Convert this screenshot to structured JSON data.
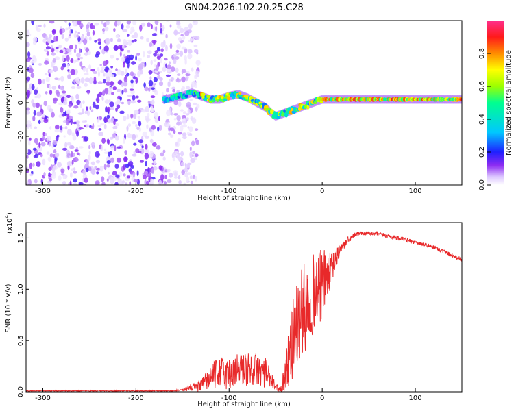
{
  "title": "GN04.2026.102.20.25.C28",
  "colors": {
    "snr_line": "#e8292a",
    "axis": "#000000",
    "background": "#ffffff"
  },
  "chart_data": [
    {
      "type": "heatmap",
      "name": "spectrogram",
      "xlabel": "Height of straight line (km)",
      "ylabel": "Frequency (Hz)",
      "xlim": [
        -318,
        150
      ],
      "ylim": [
        -49,
        49
      ],
      "x_ticks": [
        -300,
        -200,
        -100,
        0,
        100
      ],
      "y_ticks": [
        -40,
        -20,
        0,
        20,
        40
      ],
      "noise_region_x": [
        -318,
        -145
      ],
      "signal_track": {
        "x": [
          -170,
          -150,
          -140,
          -130,
          -120,
          -110,
          -100,
          -90,
          -80,
          -70,
          -60,
          -55,
          -50,
          -40,
          -30,
          -20,
          -10,
          0,
          20,
          60,
          100,
          150
        ],
        "freq": [
          2,
          4,
          6,
          4,
          2,
          2,
          4,
          5,
          3,
          0,
          -3,
          -6,
          -8,
          -6,
          -4,
          -2,
          0,
          2,
          2,
          2,
          2,
          2
        ]
      },
      "colorbar": {
        "label": "Normalized spectral amplitude",
        "range": [
          0,
          1
        ],
        "ticks": [
          0.0,
          0.2,
          0.4,
          0.6,
          0.8
        ]
      }
    },
    {
      "type": "line",
      "name": "snr",
      "xlabel": "Height of straight line (km)",
      "ylabel": "SNR (10 * v/v)",
      "multiplier_label": "(x10",
      "multiplier_exp": "4",
      "multiplier_close": ")",
      "xlim": [
        -318,
        150
      ],
      "ylim": [
        0,
        1.65
      ],
      "x_ticks": [
        -300,
        -200,
        -100,
        0,
        100
      ],
      "y_ticks": [
        0.0,
        0.5,
        1.0,
        1.5
      ],
      "envelope": {
        "x": [
          -318,
          -160,
          -150,
          -130,
          -120,
          -110,
          -100,
          -90,
          -80,
          -70,
          -60,
          -50,
          -45,
          -40,
          -30,
          -20,
          -10,
          0,
          10,
          20,
          30,
          40,
          60,
          80,
          100,
          120,
          150
        ],
        "y": [
          0.01,
          0.01,
          0.02,
          0.06,
          0.14,
          0.2,
          0.17,
          0.22,
          0.22,
          0.22,
          0.18,
          0.05,
          0.02,
          0.15,
          0.6,
          0.8,
          0.95,
          1.05,
          1.2,
          1.4,
          1.5,
          1.55,
          1.54,
          1.5,
          1.46,
          1.41,
          1.29
        ]
      },
      "noise": {
        "x": [
          -318,
          -160,
          -150,
          -130,
          -120,
          -100,
          -60,
          -50,
          -45,
          -40,
          -30,
          -20,
          -10,
          0,
          10,
          20,
          40,
          150
        ],
        "y": [
          0.005,
          0.005,
          0.01,
          0.06,
          0.12,
          0.18,
          0.15,
          0.03,
          0.03,
          0.18,
          0.45,
          0.45,
          0.4,
          0.35,
          0.15,
          0.05,
          0.02,
          0.02
        ]
      }
    }
  ]
}
